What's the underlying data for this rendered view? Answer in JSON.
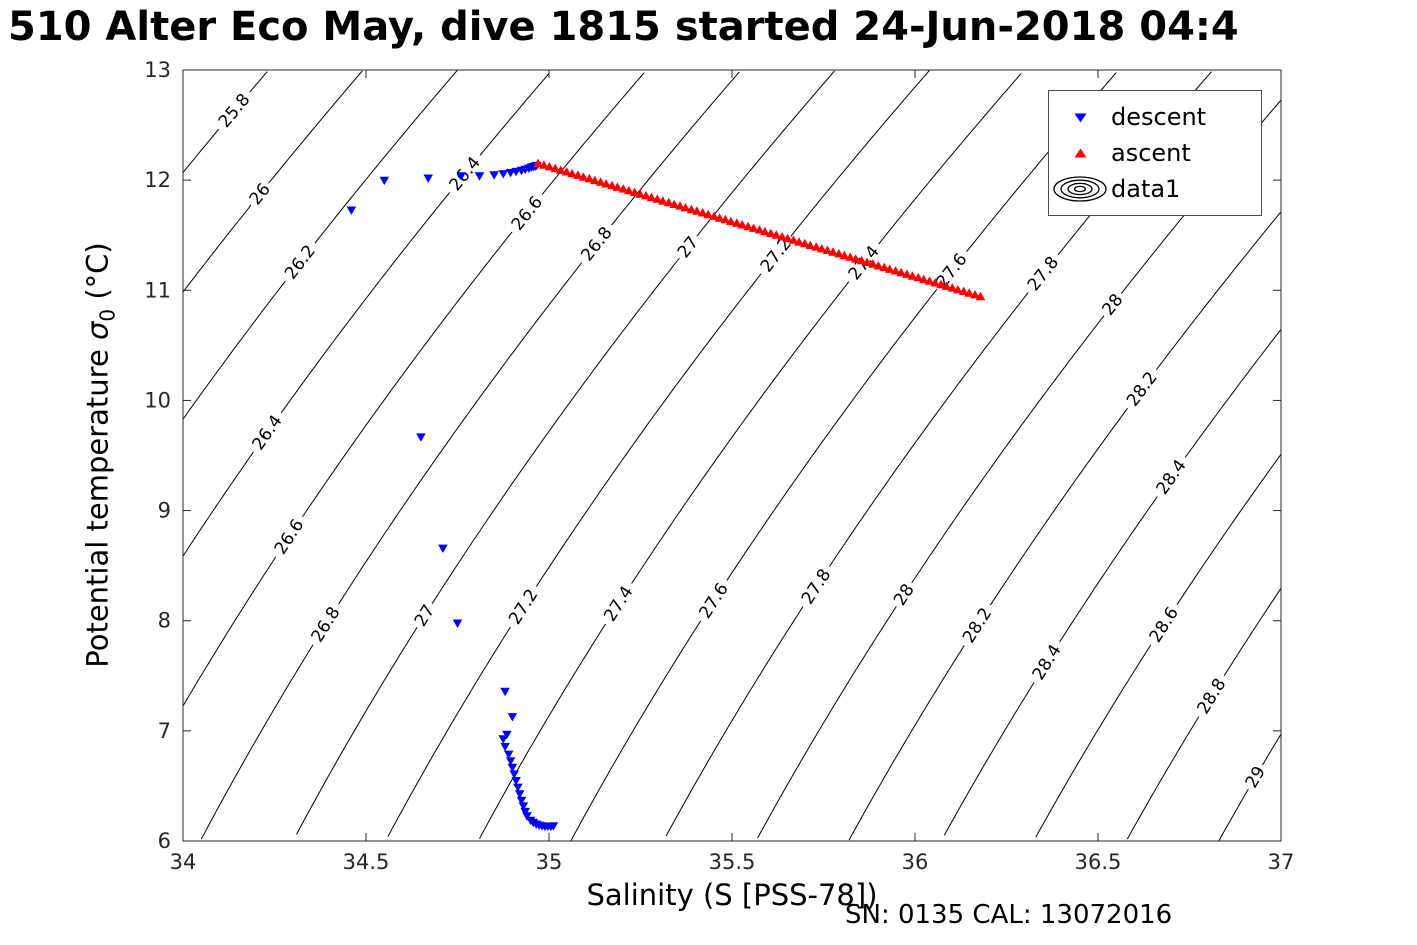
{
  "title": "510 Alter Eco May, dive 1815 started 24-Jun-2018 04:4",
  "footer": "SN: 0135  CAL: 13072016",
  "chart_data": {
    "type": "scatter",
    "title": "510 Alter Eco May, dive 1815 started 24-Jun-2018 04:4",
    "xlabel": "Salinity (S [PSS-78])",
    "ylabel": "Potential temperature σ₀ (°C)",
    "ylabel_parts": {
      "prefix": "Potential temperature ",
      "symbol": "σ",
      "subscript": "0",
      "suffix": " (°C)"
    },
    "xlim": [
      34,
      37
    ],
    "ylim": [
      6,
      13
    ],
    "xticks": [
      34,
      34.5,
      35,
      35.5,
      36,
      36.5,
      37
    ],
    "xtick_labels": [
      "34",
      "34.5",
      "35",
      "35.5",
      "36",
      "36.5",
      "37"
    ],
    "yticks": [
      6,
      7,
      8,
      9,
      10,
      11,
      12,
      13
    ],
    "ytick_labels": [
      "6",
      "7",
      "8",
      "9",
      "10",
      "11",
      "12",
      "13"
    ],
    "grid": false,
    "isopycnals": {
      "description": "potential density anomaly contours (sigma-0, kg/m3)",
      "levels": [
        25.8,
        26,
        26.2,
        26.4,
        26.6,
        26.8,
        27,
        27.2,
        27.4,
        27.6,
        27.8,
        28,
        28.2,
        28.4,
        28.6,
        28.8,
        29
      ],
      "labels": [
        "25.8",
        "26",
        "26.2",
        "26.4",
        "26.6",
        "26.8",
        "27",
        "27.2",
        "27.4",
        "27.6",
        "27.8",
        "28",
        "28.2",
        "28.4",
        "28.6",
        "28.8",
        "29"
      ],
      "line_color": "#000000"
    },
    "legend": {
      "position": "top-right",
      "entries": [
        {
          "label": "descent",
          "marker": "triangle-down",
          "color": "#0000FF"
        },
        {
          "label": "ascent",
          "marker": "triangle-up",
          "color": "#FF0000"
        },
        {
          "label": "data1",
          "icon": "contour-ellipses",
          "color": "#000000"
        }
      ]
    },
    "series": [
      {
        "name": "descent",
        "marker": "triangle-down",
        "color": "#0000FF",
        "points": [
          [
            34.46,
            11.73
          ],
          [
            34.55,
            12.0
          ],
          [
            34.67,
            12.02
          ],
          [
            34.76,
            12.04
          ],
          [
            34.81,
            12.04
          ],
          [
            34.85,
            12.05
          ],
          [
            34.875,
            12.06
          ],
          [
            34.895,
            12.07
          ],
          [
            34.91,
            12.08
          ],
          [
            34.925,
            12.09
          ],
          [
            34.935,
            12.1
          ],
          [
            34.945,
            12.11
          ],
          [
            34.952,
            12.12
          ],
          [
            34.958,
            12.125
          ],
          [
            34.963,
            12.13
          ],
          [
            34.967,
            12.135
          ],
          [
            34.65,
            9.67
          ],
          [
            34.71,
            8.66
          ],
          [
            34.75,
            7.98
          ],
          [
            34.88,
            7.36
          ],
          [
            34.9,
            7.13
          ],
          [
            34.885,
            6.97
          ],
          [
            34.875,
            6.93
          ],
          [
            34.88,
            6.86
          ],
          [
            34.89,
            6.79
          ],
          [
            34.895,
            6.73
          ],
          [
            34.9,
            6.67
          ],
          [
            34.905,
            6.61
          ],
          [
            34.91,
            6.55
          ],
          [
            34.915,
            6.49
          ],
          [
            34.92,
            6.43
          ],
          [
            34.925,
            6.37
          ],
          [
            34.93,
            6.32
          ],
          [
            34.935,
            6.27
          ],
          [
            34.94,
            6.23
          ],
          [
            34.95,
            6.19
          ],
          [
            34.957,
            6.17
          ],
          [
            34.965,
            6.155
          ],
          [
            34.973,
            6.145
          ],
          [
            34.981,
            6.14
          ],
          [
            34.989,
            6.135
          ],
          [
            34.997,
            6.135
          ],
          [
            35.005,
            6.135
          ],
          [
            35.012,
            6.14
          ]
        ]
      },
      {
        "name": "ascent",
        "marker": "triangle-up",
        "color": "#FF0000",
        "points": [
          [
            34.97,
            12.15
          ],
          [
            34.986,
            12.135
          ],
          [
            35.001,
            12.119
          ],
          [
            35.017,
            12.104
          ],
          [
            35.032,
            12.088
          ],
          [
            35.048,
            12.073
          ],
          [
            35.063,
            12.057
          ],
          [
            35.079,
            12.042
          ],
          [
            35.094,
            12.026
          ],
          [
            35.11,
            12.011
          ],
          [
            35.125,
            11.995
          ],
          [
            35.141,
            11.98
          ],
          [
            35.156,
            11.964
          ],
          [
            35.172,
            11.949
          ],
          [
            35.187,
            11.933
          ],
          [
            35.203,
            11.918
          ],
          [
            35.218,
            11.902
          ],
          [
            35.234,
            11.887
          ],
          [
            35.249,
            11.871
          ],
          [
            35.265,
            11.856
          ],
          [
            35.28,
            11.84
          ],
          [
            35.296,
            11.825
          ],
          [
            35.311,
            11.809
          ],
          [
            35.327,
            11.794
          ],
          [
            35.342,
            11.778
          ],
          [
            35.358,
            11.763
          ],
          [
            35.373,
            11.747
          ],
          [
            35.389,
            11.732
          ],
          [
            35.404,
            11.716
          ],
          [
            35.42,
            11.701
          ],
          [
            35.435,
            11.685
          ],
          [
            35.451,
            11.67
          ],
          [
            35.466,
            11.654
          ],
          [
            35.482,
            11.639
          ],
          [
            35.497,
            11.623
          ],
          [
            35.513,
            11.608
          ],
          [
            35.528,
            11.592
          ],
          [
            35.544,
            11.577
          ],
          [
            35.559,
            11.561
          ],
          [
            35.575,
            11.546
          ],
          [
            35.59,
            11.53
          ],
          [
            35.606,
            11.515
          ],
          [
            35.621,
            11.499
          ],
          [
            35.637,
            11.484
          ],
          [
            35.652,
            11.468
          ],
          [
            35.668,
            11.453
          ],
          [
            35.683,
            11.437
          ],
          [
            35.699,
            11.422
          ],
          [
            35.714,
            11.406
          ],
          [
            35.73,
            11.391
          ],
          [
            35.745,
            11.375
          ],
          [
            35.761,
            11.36
          ],
          [
            35.776,
            11.344
          ],
          [
            35.792,
            11.329
          ],
          [
            35.807,
            11.313
          ],
          [
            35.823,
            11.298
          ],
          [
            35.838,
            11.282
          ],
          [
            35.854,
            11.267
          ],
          [
            35.869,
            11.251
          ],
          [
            35.885,
            11.236
          ],
          [
            35.9,
            11.22
          ],
          [
            35.916,
            11.205
          ],
          [
            35.931,
            11.189
          ],
          [
            35.947,
            11.174
          ],
          [
            35.962,
            11.158
          ],
          [
            35.978,
            11.143
          ],
          [
            35.993,
            11.127
          ],
          [
            36.009,
            11.112
          ],
          [
            36.024,
            11.096
          ],
          [
            36.04,
            11.081
          ],
          [
            36.055,
            11.065
          ],
          [
            36.071,
            11.05
          ],
          [
            36.086,
            11.034
          ],
          [
            36.102,
            11.019
          ],
          [
            36.117,
            11.003
          ],
          [
            36.133,
            10.988
          ],
          [
            36.148,
            10.972
          ],
          [
            36.164,
            10.957
          ],
          [
            36.179,
            10.941
          ]
        ]
      }
    ]
  }
}
